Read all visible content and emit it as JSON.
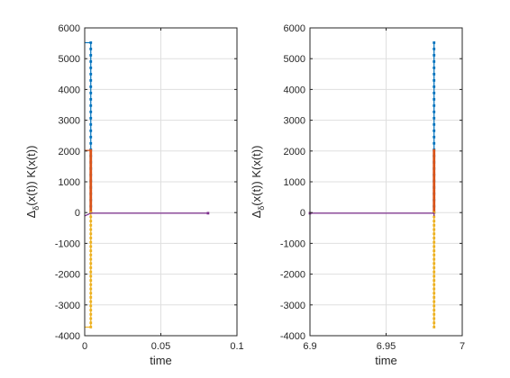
{
  "chart_data": [
    {
      "type": "line",
      "xlabel": "time",
      "ylabel": "Δ_δ(x(t)) K(x(t))",
      "xlim": [
        0,
        0.1
      ],
      "ylim": [
        -4000,
        6000
      ],
      "xticks": [
        "0",
        "0.05",
        "0.1"
      ],
      "yticks": [
        "-4000",
        "-3000",
        "-2000",
        "-1000",
        "0",
        "1000",
        "2000",
        "3000",
        "4000",
        "5000",
        "6000"
      ],
      "grid": true,
      "series": [
        {
          "color": "#0072BD",
          "x": [
            0,
            0.004,
            0.004
          ],
          "y": [
            5520,
            5520,
            0
          ],
          "marker_x": 0.004,
          "marker_y_from": 0,
          "marker_y_to": 5520
        },
        {
          "color": "#D95319",
          "x": [
            0,
            0.004,
            0.004
          ],
          "y": [
            2020,
            2020,
            0
          ],
          "marker_x": 0.004,
          "marker_y_from": 0,
          "marker_y_to": 2020
        },
        {
          "color": "#EDB120",
          "x": [
            0,
            0.004,
            0.004
          ],
          "y": [
            -3720,
            -3720,
            0
          ],
          "marker_x": 0.004,
          "marker_y_from": -3720,
          "marker_y_to": 0
        },
        {
          "color": "#7E2F8E",
          "x": [
            0,
            0.004,
            0.081
          ],
          "y": [
            -110,
            -20,
            -20
          ],
          "marker_x": 0.081,
          "marker_y_from": -20,
          "marker_y_to": -20
        }
      ]
    },
    {
      "type": "line",
      "xlabel": "time",
      "ylabel": "Δ_δ(x(t)) K(x(t))",
      "xlim": [
        6.9,
        7.0
      ],
      "ylim": [
        -4000,
        6000
      ],
      "xticks": [
        "6.9",
        "6.95",
        "7"
      ],
      "yticks": [
        "-4000",
        "-3000",
        "-2000",
        "-1000",
        "0",
        "1000",
        "2000",
        "3000",
        "4000",
        "5000",
        "6000"
      ],
      "grid": true,
      "series": [
        {
          "color": "#0072BD",
          "x": [
            6.9815,
            6.9815
          ],
          "y": [
            0,
            5520
          ],
          "marker_x": 6.9815,
          "marker_y_from": 0,
          "marker_y_to": 5520
        },
        {
          "color": "#D95319",
          "x": [
            6.9815,
            6.9815
          ],
          "y": [
            0,
            2020
          ],
          "marker_x": 6.9815,
          "marker_y_from": 0,
          "marker_y_to": 2020
        },
        {
          "color": "#EDB120",
          "x": [
            6.9815,
            6.9815
          ],
          "y": [
            -3720,
            0
          ],
          "marker_x": 6.9815,
          "marker_y_from": -3720,
          "marker_y_to": 0
        },
        {
          "color": "#7E2F8E",
          "x": [
            6.9,
            6.9815,
            6.9815
          ],
          "y": [
            -20,
            -20,
            -110
          ],
          "marker_x": 6.9,
          "marker_y_from": -20,
          "marker_y_to": -20
        }
      ]
    }
  ]
}
